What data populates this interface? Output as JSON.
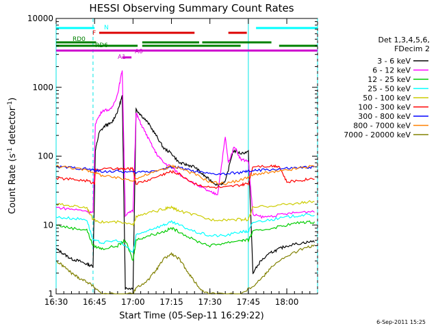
{
  "chart_data": {
    "type": "line",
    "title": "HESSI Observing Summary Count Rates",
    "xlabel": "Start Time (05-Sep-11 16:29:22)",
    "ylabel_main": "Count Rate (s",
    "ylabel_sup1": "-1",
    "ylabel_mid": " detector",
    "ylabel_sup2": "-1",
    "ylabel_end": ")",
    "yscale": "log",
    "xlim_minutes": [
      16.5,
      18.2
    ],
    "ylim": [
      1,
      10000
    ],
    "x_tick_labels": [
      "16:30",
      "16:45",
      "17:00",
      "17:15",
      "17:30",
      "17:45",
      "18:00"
    ],
    "x_tick_hours": [
      16.5,
      16.75,
      17.0,
      17.25,
      17.5,
      17.75,
      18.0
    ],
    "y_tick_labels": [
      "1",
      "10",
      "100",
      "1000",
      "10000"
    ],
    "y_tick_values": [
      1,
      10,
      100,
      1000,
      10000
    ],
    "legend_header": [
      "Det 1,3,4,5,6,",
      "FDecim 2"
    ],
    "series": [
      {
        "name": "3 - 6 keV",
        "color": "#000000",
        "points": [
          [
            16.5,
            4.5
          ],
          [
            16.55,
            3.8
          ],
          [
            16.6,
            3.2
          ],
          [
            16.65,
            3.0
          ],
          [
            16.7,
            2.7
          ],
          [
            16.74,
            2.5
          ],
          [
            16.755,
            120
          ],
          [
            16.78,
            220
          ],
          [
            16.82,
            280
          ],
          [
            16.86,
            300
          ],
          [
            16.9,
            450
          ],
          [
            16.93,
            750
          ],
          [
            16.95,
            1.2
          ],
          [
            17.0,
            1.2
          ],
          [
            17.02,
            480
          ],
          [
            17.05,
            400
          ],
          [
            17.1,
            300
          ],
          [
            17.15,
            200
          ],
          [
            17.2,
            130
          ],
          [
            17.25,
            110
          ],
          [
            17.3,
            80
          ],
          [
            17.35,
            75
          ],
          [
            17.4,
            70
          ],
          [
            17.45,
            55
          ],
          [
            17.5,
            45
          ],
          [
            17.55,
            38
          ],
          [
            17.6,
            42
          ],
          [
            17.65,
            120
          ],
          [
            17.7,
            110
          ],
          [
            17.75,
            115
          ],
          [
            17.78,
            2
          ],
          [
            17.83,
            3
          ],
          [
            17.9,
            4
          ],
          [
            17.95,
            4.5
          ],
          [
            18.0,
            5
          ],
          [
            18.1,
            5.5
          ],
          [
            18.18,
            5.8
          ]
        ]
      },
      {
        "name": "6 - 12 keV",
        "color": "#ff00ff",
        "points": [
          [
            16.5,
            18
          ],
          [
            16.6,
            17
          ],
          [
            16.7,
            16
          ],
          [
            16.74,
            15
          ],
          [
            16.755,
            300
          ],
          [
            16.8,
            460
          ],
          [
            16.86,
            480
          ],
          [
            16.9,
            800
          ],
          [
            16.93,
            1800
          ],
          [
            16.95,
            14
          ],
          [
            17.0,
            16
          ],
          [
            17.02,
            420
          ],
          [
            17.05,
            300
          ],
          [
            17.1,
            180
          ],
          [
            17.15,
            110
          ],
          [
            17.2,
            80
          ],
          [
            17.25,
            70
          ],
          [
            17.3,
            55
          ],
          [
            17.4,
            40
          ],
          [
            17.45,
            35
          ],
          [
            17.5,
            30
          ],
          [
            17.55,
            28
          ],
          [
            17.6,
            190
          ],
          [
            17.62,
            80
          ],
          [
            17.66,
            140
          ],
          [
            17.7,
            90
          ],
          [
            17.75,
            85
          ],
          [
            17.78,
            14
          ],
          [
            17.85,
            13
          ],
          [
            17.95,
            14
          ],
          [
            18.05,
            15
          ],
          [
            18.18,
            16
          ]
        ]
      },
      {
        "name": "12 - 25 keV",
        "color": "#00cc00",
        "points": [
          [
            16.5,
            10
          ],
          [
            16.6,
            9
          ],
          [
            16.7,
            8.5
          ],
          [
            16.74,
            5
          ],
          [
            16.8,
            4.5
          ],
          [
            16.9,
            5
          ],
          [
            16.95,
            6
          ],
          [
            17.0,
            3
          ],
          [
            17.02,
            6
          ],
          [
            17.1,
            7
          ],
          [
            17.2,
            8
          ],
          [
            17.25,
            9
          ],
          [
            17.3,
            8
          ],
          [
            17.4,
            6
          ],
          [
            17.5,
            5
          ],
          [
            17.6,
            5.5
          ],
          [
            17.7,
            6
          ],
          [
            17.75,
            6
          ],
          [
            17.78,
            8
          ],
          [
            17.9,
            9
          ],
          [
            18.0,
            10
          ],
          [
            18.1,
            11
          ],
          [
            18.18,
            11
          ]
        ]
      },
      {
        "name": "25 - 50 keV",
        "color": "#00ffff",
        "points": [
          [
            16.5,
            13
          ],
          [
            16.6,
            12.5
          ],
          [
            16.7,
            12
          ],
          [
            16.74,
            6
          ],
          [
            16.8,
            5.5
          ],
          [
            16.9,
            6
          ],
          [
            17.0,
            4
          ],
          [
            17.02,
            7
          ],
          [
            17.1,
            8.5
          ],
          [
            17.2,
            10
          ],
          [
            17.25,
            11
          ],
          [
            17.3,
            10
          ],
          [
            17.4,
            8
          ],
          [
            17.5,
            7
          ],
          [
            17.6,
            7
          ],
          [
            17.7,
            8
          ],
          [
            17.75,
            8
          ],
          [
            17.78,
            11
          ],
          [
            17.9,
            12
          ],
          [
            18.0,
            13
          ],
          [
            18.1,
            14
          ],
          [
            18.18,
            14
          ]
        ]
      },
      {
        "name": "50 - 100 keV",
        "color": "#cccc00",
        "points": [
          [
            16.5,
            20
          ],
          [
            16.6,
            19
          ],
          [
            16.7,
            18
          ],
          [
            16.74,
            12
          ],
          [
            16.8,
            11
          ],
          [
            16.9,
            11
          ],
          [
            17.0,
            10
          ],
          [
            17.02,
            13
          ],
          [
            17.1,
            15
          ],
          [
            17.2,
            17
          ],
          [
            17.25,
            18
          ],
          [
            17.3,
            16
          ],
          [
            17.4,
            14
          ],
          [
            17.5,
            12
          ],
          [
            17.6,
            12
          ],
          [
            17.7,
            12
          ],
          [
            17.75,
            12
          ],
          [
            17.78,
            18
          ],
          [
            17.9,
            19
          ],
          [
            18.0,
            20
          ],
          [
            18.1,
            21
          ],
          [
            18.18,
            22
          ]
        ]
      },
      {
        "name": "100 - 300 keV",
        "color": "#ff0000",
        "points": [
          [
            16.5,
            48
          ],
          [
            16.6,
            46
          ],
          [
            16.7,
            44
          ],
          [
            16.75,
            40
          ],
          [
            16.755,
            65
          ],
          [
            16.9,
            65
          ],
          [
            16.95,
            65
          ],
          [
            17.0,
            65
          ],
          [
            17.02,
            40
          ],
          [
            17.1,
            45
          ],
          [
            17.2,
            55
          ],
          [
            17.25,
            60
          ],
          [
            17.3,
            55
          ],
          [
            17.4,
            40
          ],
          [
            17.5,
            35
          ],
          [
            17.6,
            35
          ],
          [
            17.7,
            38
          ],
          [
            17.75,
            40
          ],
          [
            17.78,
            72
          ],
          [
            17.9,
            72
          ],
          [
            17.95,
            72
          ],
          [
            18.0,
            42
          ],
          [
            18.1,
            45
          ],
          [
            18.18,
            48
          ]
        ]
      },
      {
        "name": "300 - 800 keV",
        "color": "#0000ff",
        "points": [
          [
            16.5,
            70
          ],
          [
            16.6,
            68
          ],
          [
            16.7,
            65
          ],
          [
            16.75,
            62
          ],
          [
            16.8,
            60
          ],
          [
            16.9,
            60
          ],
          [
            17.0,
            58
          ],
          [
            17.1,
            60
          ],
          [
            17.2,
            65
          ],
          [
            17.25,
            70
          ],
          [
            17.3,
            68
          ],
          [
            17.4,
            60
          ],
          [
            17.5,
            55
          ],
          [
            17.6,
            55
          ],
          [
            17.7,
            58
          ],
          [
            17.75,
            60
          ],
          [
            17.8,
            62
          ],
          [
            17.9,
            64
          ],
          [
            18.0,
            66
          ],
          [
            18.1,
            68
          ],
          [
            18.18,
            70
          ]
        ]
      },
      {
        "name": "800 - 7000 keV",
        "color": "#ff8000",
        "points": [
          [
            16.5,
            72
          ],
          [
            16.6,
            68
          ],
          [
            16.7,
            62
          ],
          [
            16.75,
            58
          ],
          [
            16.8,
            52
          ],
          [
            16.9,
            48
          ],
          [
            17.0,
            45
          ],
          [
            17.1,
            55
          ],
          [
            17.2,
            65
          ],
          [
            17.25,
            72
          ],
          [
            17.3,
            68
          ],
          [
            17.4,
            55
          ],
          [
            17.5,
            42
          ],
          [
            17.6,
            40
          ],
          [
            17.7,
            45
          ],
          [
            17.75,
            50
          ],
          [
            17.8,
            55
          ],
          [
            17.9,
            58
          ],
          [
            18.0,
            62
          ],
          [
            18.1,
            68
          ],
          [
            18.18,
            72
          ]
        ]
      },
      {
        "name": "7000 - 20000 keV",
        "color": "#808000",
        "points": [
          [
            16.5,
            3
          ],
          [
            16.55,
            2.5
          ],
          [
            16.6,
            2
          ],
          [
            16.65,
            1.7
          ],
          [
            16.7,
            1.5
          ],
          [
            16.74,
            1.3
          ],
          [
            16.8,
            1
          ],
          [
            17.0,
            1
          ],
          [
            17.02,
            1.2
          ],
          [
            17.1,
            1.6
          ],
          [
            17.15,
            2.2
          ],
          [
            17.2,
            3.2
          ],
          [
            17.25,
            3.8
          ],
          [
            17.3,
            3.2
          ],
          [
            17.35,
            2.2
          ],
          [
            17.4,
            1.5
          ],
          [
            17.45,
            1.1
          ],
          [
            17.5,
            1
          ],
          [
            17.7,
            1
          ],
          [
            17.78,
            1.3
          ],
          [
            17.85,
            1.8
          ],
          [
            17.9,
            2.5
          ],
          [
            18.0,
            3.5
          ],
          [
            18.1,
            4.5
          ],
          [
            18.18,
            5
          ]
        ]
      }
    ],
    "flag_bars": [
      {
        "label": "N",
        "color": "#00ffff",
        "segments": [
          [
            16.5,
            16.75
          ],
          [
            17.8,
            18.2
          ]
        ],
        "level": 0
      },
      {
        "label": "F",
        "color": "#dd0000",
        "segments": [
          [
            16.78,
            17.4
          ],
          [
            17.62,
            17.74
          ]
        ],
        "level": 1
      },
      {
        "label": "RD0",
        "color": "#008000",
        "segments": [
          [
            16.5,
            16.76
          ],
          [
            17.06,
            17.43
          ],
          [
            17.45,
            17.9
          ]
        ],
        "level": 2
      },
      {
        "label": "RD6",
        "color": "#008000",
        "segments": [
          [
            16.5,
            17.03
          ],
          [
            17.06,
            17.7
          ],
          [
            17.95,
            18.2
          ]
        ],
        "level": 3
      },
      {
        "label": "",
        "color": "#cc00cc",
        "segments": [
          [
            16.5,
            18.2
          ]
        ],
        "level": 4
      },
      {
        "label": "A1",
        "color": "#cc00cc",
        "segments": [
          [
            16.93,
            16.99
          ]
        ],
        "level": 5
      },
      {
        "label": "A0",
        "color": "#cc00cc",
        "segments": [],
        "level": 5
      }
    ],
    "vlines_solid": [
      16.5,
      17.75
    ],
    "vlines_dashed": [
      16.74,
      18.2
    ],
    "footer_date": "6-Sep-2011 15:25"
  }
}
